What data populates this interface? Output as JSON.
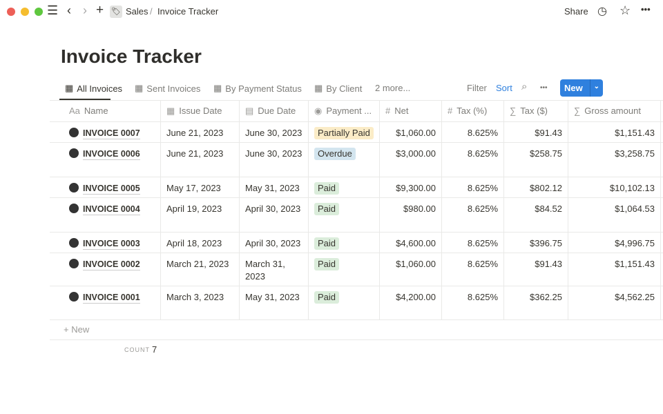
{
  "window": {
    "controls": [
      "close",
      "minimize",
      "zoom"
    ]
  },
  "breadcrumb": {
    "parent": "Sales",
    "separator": "/",
    "current": "Invoice Tracker"
  },
  "topbar": {
    "share": "Share"
  },
  "page": {
    "title": "Invoice Tracker"
  },
  "tabs": [
    {
      "label": "All Invoices",
      "active": true
    },
    {
      "label": "Sent Invoices"
    },
    {
      "label": "By Payment Status"
    },
    {
      "label": "By Client"
    }
  ],
  "more_views": "2 more...",
  "toolbar": {
    "filter": "Filter",
    "sort": "Sort",
    "new": "New",
    "accent": "#2f80de"
  },
  "columns": [
    "Name",
    "Issue Date",
    "Due Date",
    "Payment ...",
    "Net",
    "Tax (%)",
    "Tax ($)",
    "Gross amount"
  ],
  "column_icons": {
    "name": "Aa"
  },
  "status_colors": {
    "Partially Paid": "#fbecc7",
    "Overdue": "#d3e5ef",
    "Paid": "#dbeddb"
  },
  "rows": [
    {
      "name": "INVOICE 0007",
      "issue": "June 21, 2023",
      "due": "June 30, 2023",
      "status": "Partially Paid",
      "net": "$1,060.00",
      "taxp": "8.625%",
      "tax": "$91.43",
      "gross": "$1,151.43"
    },
    {
      "name": "INVOICE 0006",
      "issue": "June 21, 2023",
      "due": "June 30, 2023",
      "status": "Overdue",
      "net": "$3,000.00",
      "taxp": "8.625%",
      "tax": "$258.75",
      "gross": "$3,258.75"
    },
    {
      "name": "INVOICE 0005",
      "issue": "May 17, 2023",
      "due": "May 31, 2023",
      "status": "Paid",
      "net": "$9,300.00",
      "taxp": "8.625%",
      "tax": "$802.12",
      "gross": "$10,102.13"
    },
    {
      "name": "INVOICE 0004",
      "issue": "April 19, 2023",
      "due": "April 30, 2023",
      "status": "Paid",
      "net": "$980.00",
      "taxp": "8.625%",
      "tax": "$84.52",
      "gross": "$1,064.53"
    },
    {
      "name": "INVOICE 0003",
      "issue": "April 18, 2023",
      "due": "April 30, 2023",
      "status": "Paid",
      "net": "$4,600.00",
      "taxp": "8.625%",
      "tax": "$396.75",
      "gross": "$4,996.75"
    },
    {
      "name": "INVOICE 0002",
      "issue": "March 21, 2023",
      "due": "March 31, 2023",
      "status": "Paid",
      "net": "$1,060.00",
      "taxp": "8.625%",
      "tax": "$91.43",
      "gross": "$1,151.43"
    },
    {
      "name": "INVOICE 0001",
      "issue": "March 3, 2023",
      "due": "May 31, 2023",
      "status": "Paid",
      "net": "$4,200.00",
      "taxp": "8.625%",
      "tax": "$362.25",
      "gross": "$4,562.25"
    }
  ],
  "new_row": "+ New",
  "footer": {
    "count_label": "COUNT",
    "count": "7"
  }
}
